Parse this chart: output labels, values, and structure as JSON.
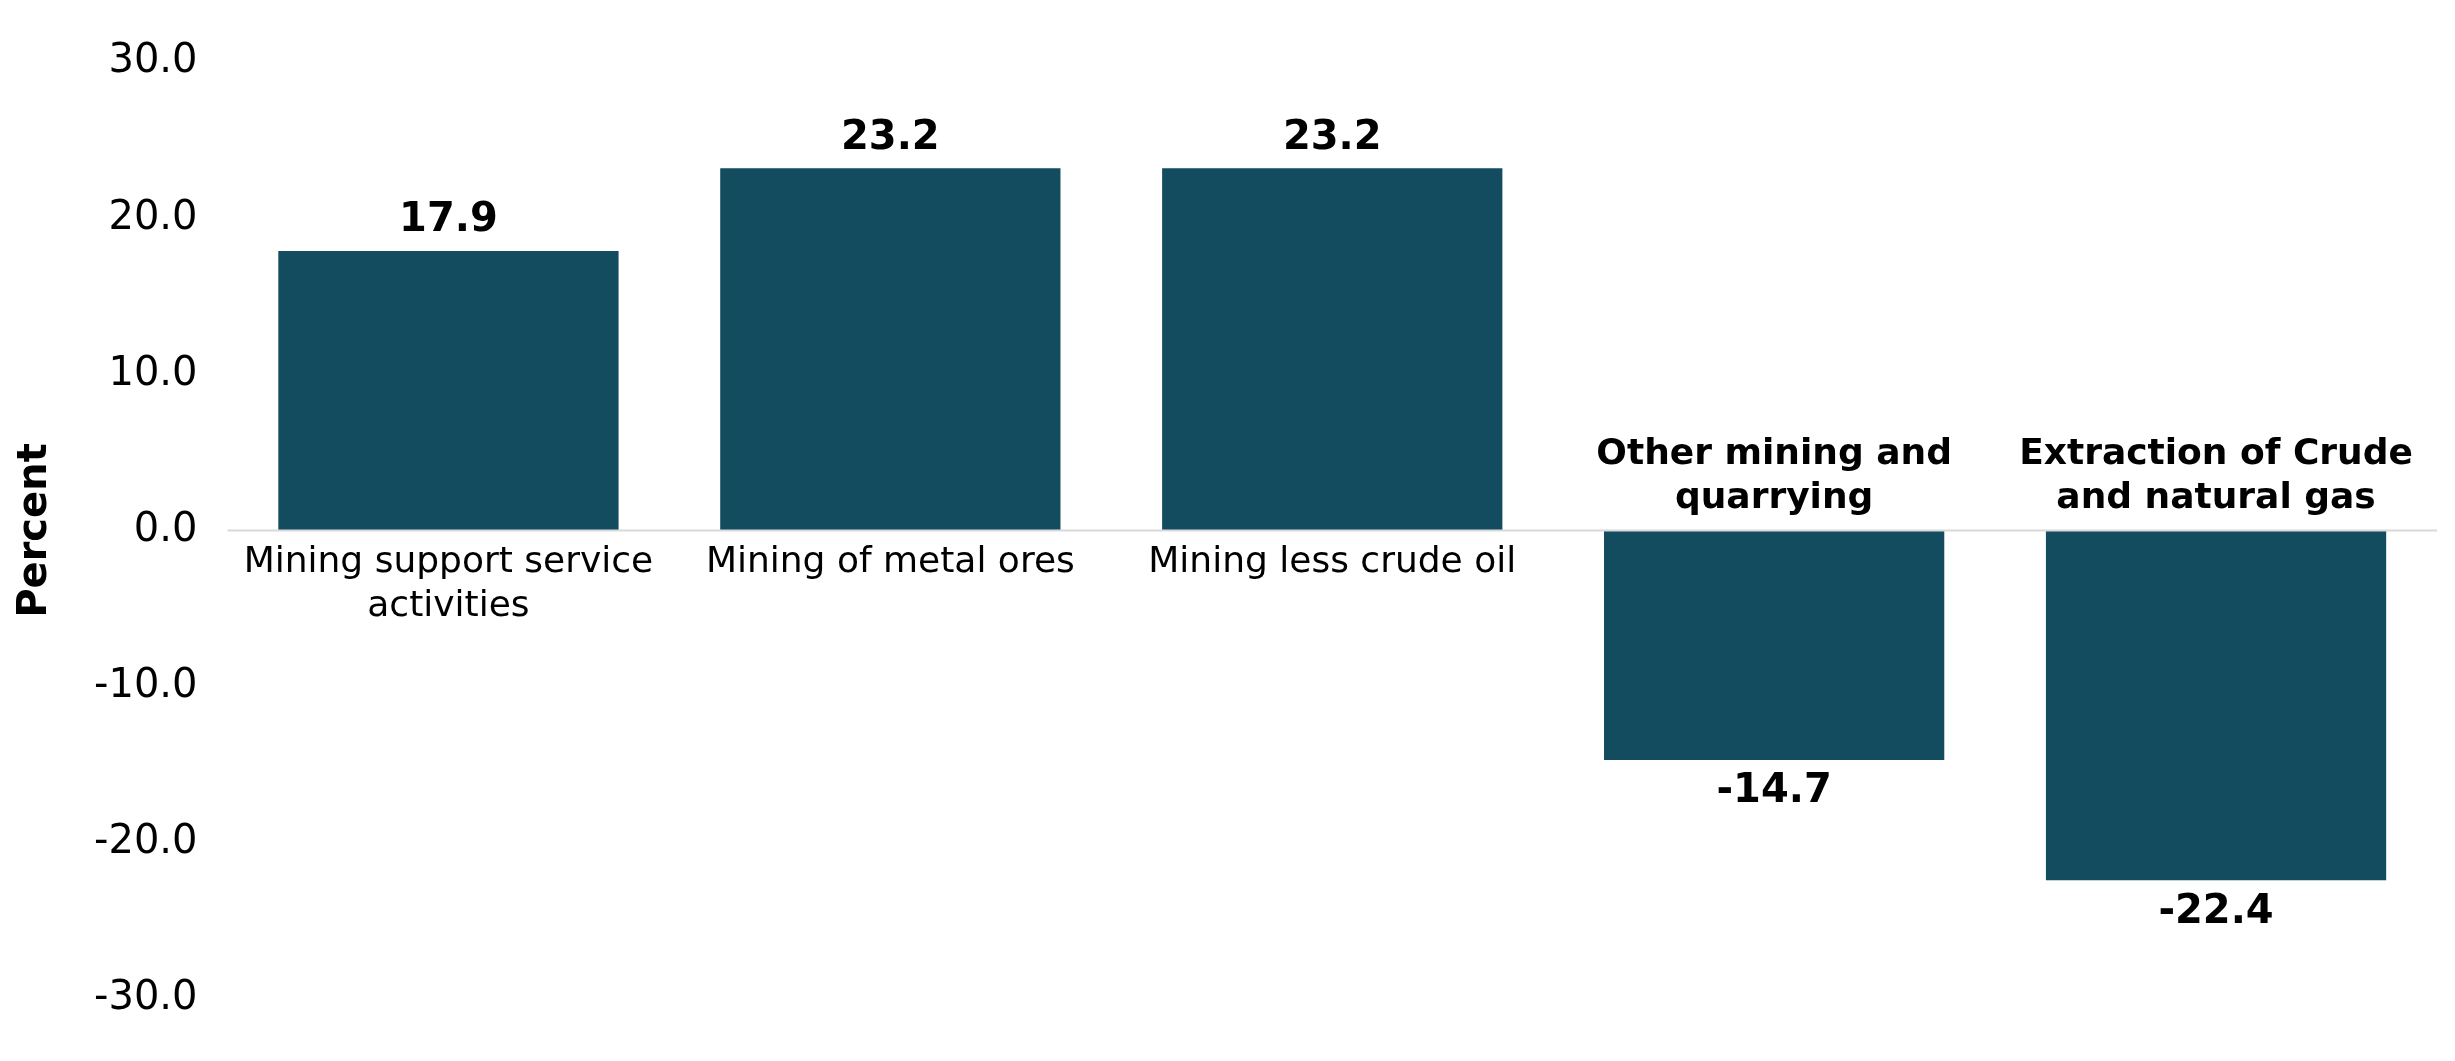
{
  "chart_data": {
    "type": "bar",
    "ylabel": "Percent",
    "categories": [
      "Mining support service activities",
      "Mining of metal ores",
      "Mining less crude oil",
      "Other mining and quarrying",
      "Extraction of Crude and natural gas"
    ],
    "values": [
      17.9,
      23.2,
      23.2,
      -14.7,
      -22.4
    ],
    "color": "#134b5f",
    "ylim": [
      -30,
      30
    ],
    "yticks": [
      {
        "value": -30,
        "label": "-30.0"
      },
      {
        "value": -20,
        "label": "-20.0"
      },
      {
        "value": -10,
        "label": "-10.0"
      },
      {
        "value": 0,
        "label": "0.0"
      },
      {
        "value": 10,
        "label": "10.0"
      },
      {
        "value": 20,
        "label": "20.0"
      },
      {
        "value": 30,
        "label": "30.0"
      }
    ],
    "grid": false,
    "legend": false,
    "data_labels": true
  }
}
